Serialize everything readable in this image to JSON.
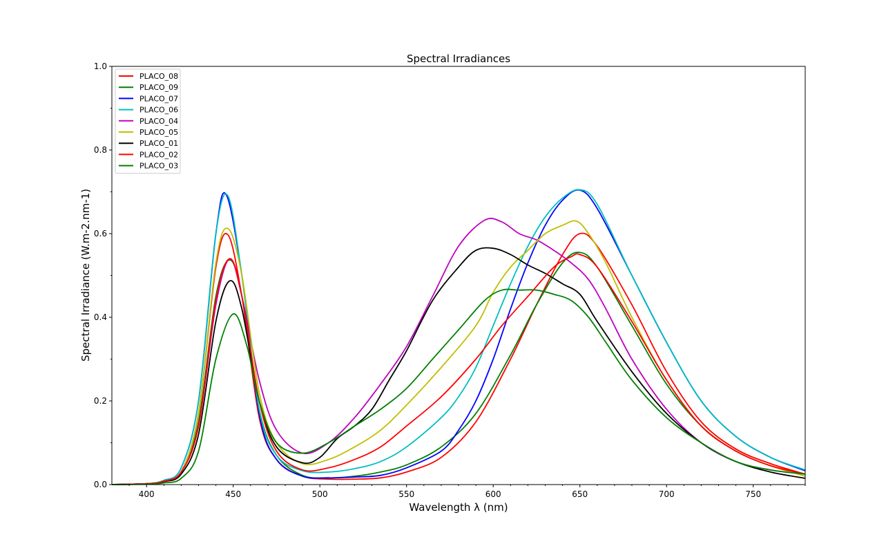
{
  "chart_data": {
    "type": "line",
    "title": "Spectral Irradiances",
    "xlabel": "Wavelength λ (nm)",
    "ylabel": "Spectral Irradiance (W.m-2.nm-1)",
    "xlim": [
      380,
      780
    ],
    "ylim": [
      0,
      1.0
    ],
    "xticks": [
      "400",
      "450",
      "500",
      "550",
      "600",
      "650",
      "700",
      "750"
    ],
    "xtick_values": [
      400,
      450,
      500,
      550,
      600,
      650,
      700,
      750
    ],
    "yticks": [
      "0.0",
      "0.2",
      "0.4",
      "0.6",
      "0.8",
      "1.0"
    ],
    "ytick_values": [
      0,
      0.2,
      0.4,
      0.6,
      0.8,
      1.0
    ],
    "grid": false,
    "legend_position": "top-left",
    "series": [
      {
        "name": "PLACO_08",
        "color": "#ff0000",
        "x": [
          380,
          400,
          410,
          420,
          430,
          440,
          447,
          455,
          465,
          475,
          490,
          505,
          520,
          535,
          550,
          570,
          590,
          610,
          625,
          640,
          650,
          660,
          680,
          700,
          720,
          740,
          760,
          780
        ],
        "y": [
          0,
          0.002,
          0.008,
          0.03,
          0.17,
          0.52,
          0.597,
          0.45,
          0.16,
          0.06,
          0.02,
          0.013,
          0.013,
          0.016,
          0.03,
          0.065,
          0.15,
          0.3,
          0.43,
          0.55,
          0.6,
          0.57,
          0.43,
          0.27,
          0.15,
          0.085,
          0.05,
          0.025
        ]
      },
      {
        "name": "PLACO_09",
        "color": "#008000",
        "x": [
          380,
          400,
          410,
          420,
          430,
          440,
          448,
          455,
          465,
          475,
          490,
          505,
          520,
          535,
          550,
          570,
          590,
          610,
          625,
          640,
          650,
          660,
          680,
          700,
          720,
          740,
          760,
          780
        ],
        "y": [
          0,
          0.002,
          0.008,
          0.03,
          0.15,
          0.45,
          0.537,
          0.45,
          0.18,
          0.07,
          0.022,
          0.016,
          0.02,
          0.03,
          0.047,
          0.09,
          0.17,
          0.31,
          0.43,
          0.53,
          0.555,
          0.52,
          0.38,
          0.24,
          0.14,
          0.08,
          0.045,
          0.025
        ]
      },
      {
        "name": "PLACO_07",
        "color": "#0000ff",
        "x": [
          380,
          400,
          410,
          420,
          430,
          440,
          446,
          455,
          465,
          475,
          490,
          505,
          520,
          535,
          550,
          570,
          580,
          590,
          600,
          610,
          620,
          630,
          640,
          650,
          660,
          680,
          700,
          720,
          740,
          760,
          780
        ],
        "y": [
          0,
          0.002,
          0.01,
          0.04,
          0.2,
          0.6,
          0.693,
          0.5,
          0.17,
          0.06,
          0.02,
          0.016,
          0.018,
          0.022,
          0.04,
          0.08,
          0.13,
          0.2,
          0.3,
          0.42,
          0.53,
          0.62,
          0.68,
          0.704,
          0.66,
          0.5,
          0.34,
          0.2,
          0.115,
          0.065,
          0.033
        ]
      },
      {
        "name": "PLACO_06",
        "color": "#00bfbf",
        "x": [
          380,
          400,
          410,
          420,
          430,
          440,
          447,
          455,
          465,
          475,
          490,
          505,
          520,
          535,
          550,
          570,
          580,
          590,
          600,
          610,
          620,
          630,
          640,
          650,
          660,
          680,
          700,
          720,
          740,
          760,
          780
        ],
        "y": [
          0,
          0.002,
          0.01,
          0.04,
          0.2,
          0.6,
          0.69,
          0.5,
          0.18,
          0.07,
          0.033,
          0.03,
          0.038,
          0.055,
          0.09,
          0.16,
          0.21,
          0.28,
          0.38,
          0.48,
          0.57,
          0.64,
          0.685,
          0.705,
          0.67,
          0.5,
          0.34,
          0.2,
          0.115,
          0.065,
          0.035
        ]
      },
      {
        "name": "PLACO_04",
        "color": "#bf00bf",
        "x": [
          380,
          400,
          410,
          420,
          430,
          440,
          448,
          455,
          465,
          475,
          490,
          505,
          520,
          535,
          550,
          565,
          580,
          595,
          605,
          615,
          625,
          635,
          645,
          655,
          665,
          680,
          700,
          720,
          740,
          760,
          780
        ],
        "y": [
          0,
          0.002,
          0.008,
          0.03,
          0.14,
          0.43,
          0.54,
          0.45,
          0.25,
          0.13,
          0.075,
          0.1,
          0.16,
          0.24,
          0.33,
          0.45,
          0.57,
          0.632,
          0.628,
          0.6,
          0.585,
          0.56,
          0.53,
          0.49,
          0.42,
          0.3,
          0.18,
          0.1,
          0.055,
          0.035,
          0.025
        ]
      },
      {
        "name": "PLACO_05",
        "color": "#bfbf00",
        "x": [
          380,
          400,
          410,
          420,
          430,
          440,
          447,
          455,
          465,
          475,
          490,
          505,
          520,
          535,
          550,
          570,
          590,
          600,
          610,
          620,
          630,
          640,
          648,
          655,
          665,
          680,
          700,
          720,
          740,
          760,
          780
        ],
        "y": [
          0,
          0.002,
          0.008,
          0.03,
          0.17,
          0.53,
          0.612,
          0.5,
          0.22,
          0.1,
          0.05,
          0.06,
          0.09,
          0.13,
          0.19,
          0.28,
          0.38,
          0.46,
          0.52,
          0.56,
          0.6,
          0.62,
          0.63,
          0.6,
          0.53,
          0.4,
          0.25,
          0.14,
          0.08,
          0.045,
          0.02
        ]
      },
      {
        "name": "PLACO_01",
        "color": "#000000",
        "x": [
          380,
          400,
          410,
          420,
          430,
          440,
          448,
          455,
          465,
          475,
          490,
          500,
          510,
          520,
          530,
          540,
          550,
          565,
          580,
          590,
          600,
          610,
          620,
          630,
          640,
          650,
          660,
          680,
          700,
          720,
          740,
          760,
          780
        ],
        "y": [
          0,
          0.002,
          0.007,
          0.025,
          0.12,
          0.39,
          0.487,
          0.42,
          0.2,
          0.09,
          0.052,
          0.065,
          0.11,
          0.14,
          0.18,
          0.25,
          0.32,
          0.44,
          0.52,
          0.56,
          0.565,
          0.55,
          0.525,
          0.505,
          0.48,
          0.455,
          0.39,
          0.27,
          0.17,
          0.1,
          0.055,
          0.03,
          0.015
        ]
      },
      {
        "name": "PLACO_02",
        "color": "#ff0000",
        "x": [
          380,
          400,
          410,
          420,
          430,
          440,
          448,
          455,
          465,
          475,
          490,
          505,
          520,
          535,
          550,
          570,
          590,
          605,
          620,
          635,
          645,
          650,
          660,
          680,
          700,
          720,
          740,
          760,
          780
        ],
        "y": [
          0,
          0.002,
          0.008,
          0.03,
          0.14,
          0.44,
          0.54,
          0.45,
          0.2,
          0.08,
          0.035,
          0.04,
          0.06,
          0.09,
          0.14,
          0.21,
          0.3,
          0.38,
          0.45,
          0.52,
          0.545,
          0.55,
          0.52,
          0.39,
          0.25,
          0.14,
          0.08,
          0.045,
          0.025
        ]
      },
      {
        "name": "PLACO_03",
        "color": "#008000",
        "x": [
          380,
          400,
          410,
          420,
          430,
          440,
          450,
          458,
          465,
          475,
          490,
          505,
          520,
          535,
          550,
          565,
          580,
          595,
          605,
          615,
          625,
          635,
          645,
          655,
          665,
          680,
          700,
          720,
          740,
          760,
          780
        ],
        "y": [
          0,
          0.001,
          0.004,
          0.015,
          0.08,
          0.3,
          0.408,
          0.33,
          0.2,
          0.1,
          0.075,
          0.1,
          0.14,
          0.18,
          0.23,
          0.3,
          0.37,
          0.44,
          0.465,
          0.465,
          0.465,
          0.455,
          0.44,
          0.4,
          0.34,
          0.25,
          0.16,
          0.1,
          0.055,
          0.035,
          0.025
        ]
      }
    ]
  }
}
